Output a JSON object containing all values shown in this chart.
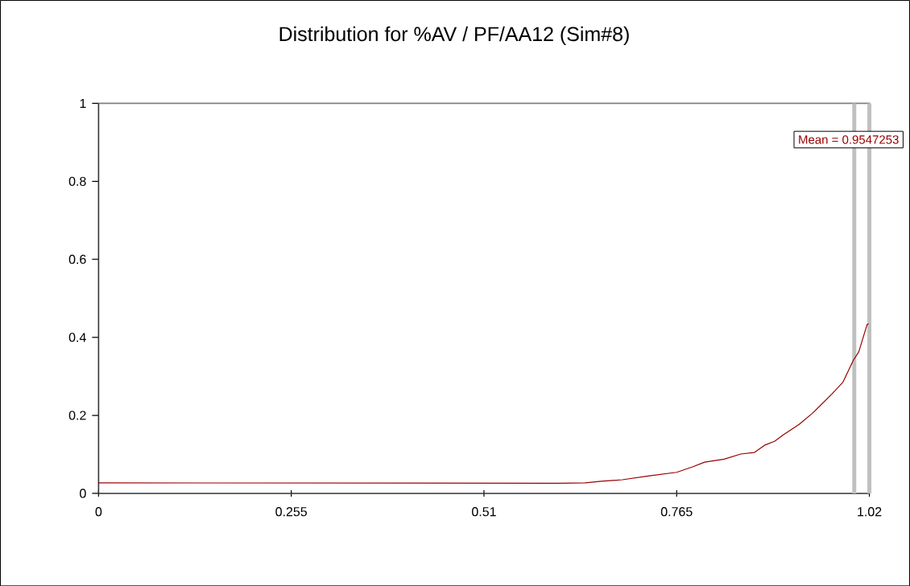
{
  "chart_data": {
    "type": "line",
    "title": "Distribution for %AV / PF/AA12 (Sim#8)",
    "x": [
      0,
      0.608,
      0.644,
      0.665,
      0.693,
      0.729,
      0.765,
      0.786,
      0.802,
      0.828,
      0.85,
      0.868,
      0.882,
      0.895,
      0.906,
      0.927,
      0.945,
      0.97,
      0.985,
      0.999,
      1.006,
      1.017,
      1.019
    ],
    "values": [
      0.027,
      0.026,
      0.027,
      0.031,
      0.035,
      0.045,
      0.054,
      0.068,
      0.08,
      0.088,
      0.101,
      0.105,
      0.124,
      0.134,
      0.15,
      0.177,
      0.206,
      0.254,
      0.285,
      0.342,
      0.363,
      0.433,
      0.435
    ],
    "color": "#990000",
    "xlim": [
      0,
      1.02
    ],
    "ylim": [
      0,
      1
    ],
    "xticks": [
      0,
      0.255,
      0.51,
      0.765,
      1.02
    ],
    "yticks": [
      0,
      0.2,
      0.4,
      0.6,
      0.8,
      1
    ],
    "ref_lines": [
      {
        "axis": "x",
        "value": 1.0,
        "color": "#c0c0c0"
      },
      {
        "axis": "x",
        "value": 1.02,
        "color": "#c0c0c0"
      }
    ],
    "annotations": [
      "Mean = 0.9547253"
    ]
  }
}
